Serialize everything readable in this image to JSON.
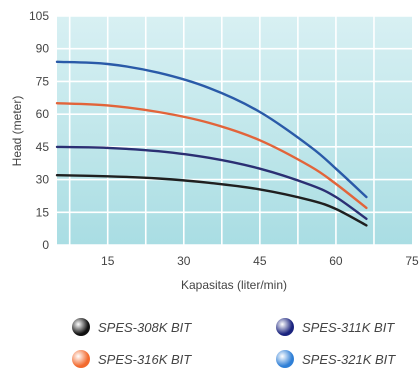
{
  "chart_data": {
    "type": "line",
    "title": "",
    "xlabel": "Kapasitas (liter/min)",
    "ylabel": "Head (meter)",
    "xlim": [
      5,
      75
    ],
    "ylim": [
      0,
      105
    ],
    "xticks": [
      "15",
      "30",
      "45",
      "60",
      "75"
    ],
    "yticks": [
      "0",
      "15",
      "30",
      "45",
      "60",
      "75",
      "90",
      "105"
    ],
    "grid": true,
    "legend_position": "bottom",
    "series": [
      {
        "name": "SPES-308K BIT",
        "color": "#1f1f1f",
        "dot_color": "#111111",
        "x": [
          5,
          15,
          25,
          35,
          45,
          55,
          60,
          66
        ],
        "y": [
          32,
          31.5,
          30.5,
          28.5,
          25.5,
          20.5,
          16.5,
          9
        ]
      },
      {
        "name": "SPES-311K BIT",
        "color": "#2b2f73",
        "dot_color": "#1a237e",
        "x": [
          5,
          15,
          25,
          35,
          45,
          55,
          60,
          66
        ],
        "y": [
          45,
          44.5,
          43,
          40,
          35,
          27.5,
          22,
          12
        ]
      },
      {
        "name": "SPES-316K BIT",
        "color": "#e2643a",
        "dot_color": "#f26a2e",
        "x": [
          5,
          15,
          25,
          35,
          45,
          55,
          60,
          66
        ],
        "y": [
          65,
          64,
          61,
          56,
          48,
          36,
          28,
          17
        ]
      },
      {
        "name": "SPES-321K BIT",
        "color": "#2a5aa8",
        "dot_color": "#2f7fd6",
        "x": [
          5,
          15,
          25,
          35,
          45,
          55,
          60,
          66
        ],
        "y": [
          84,
          83,
          79,
          72,
          61,
          45,
          35,
          22
        ]
      }
    ]
  }
}
